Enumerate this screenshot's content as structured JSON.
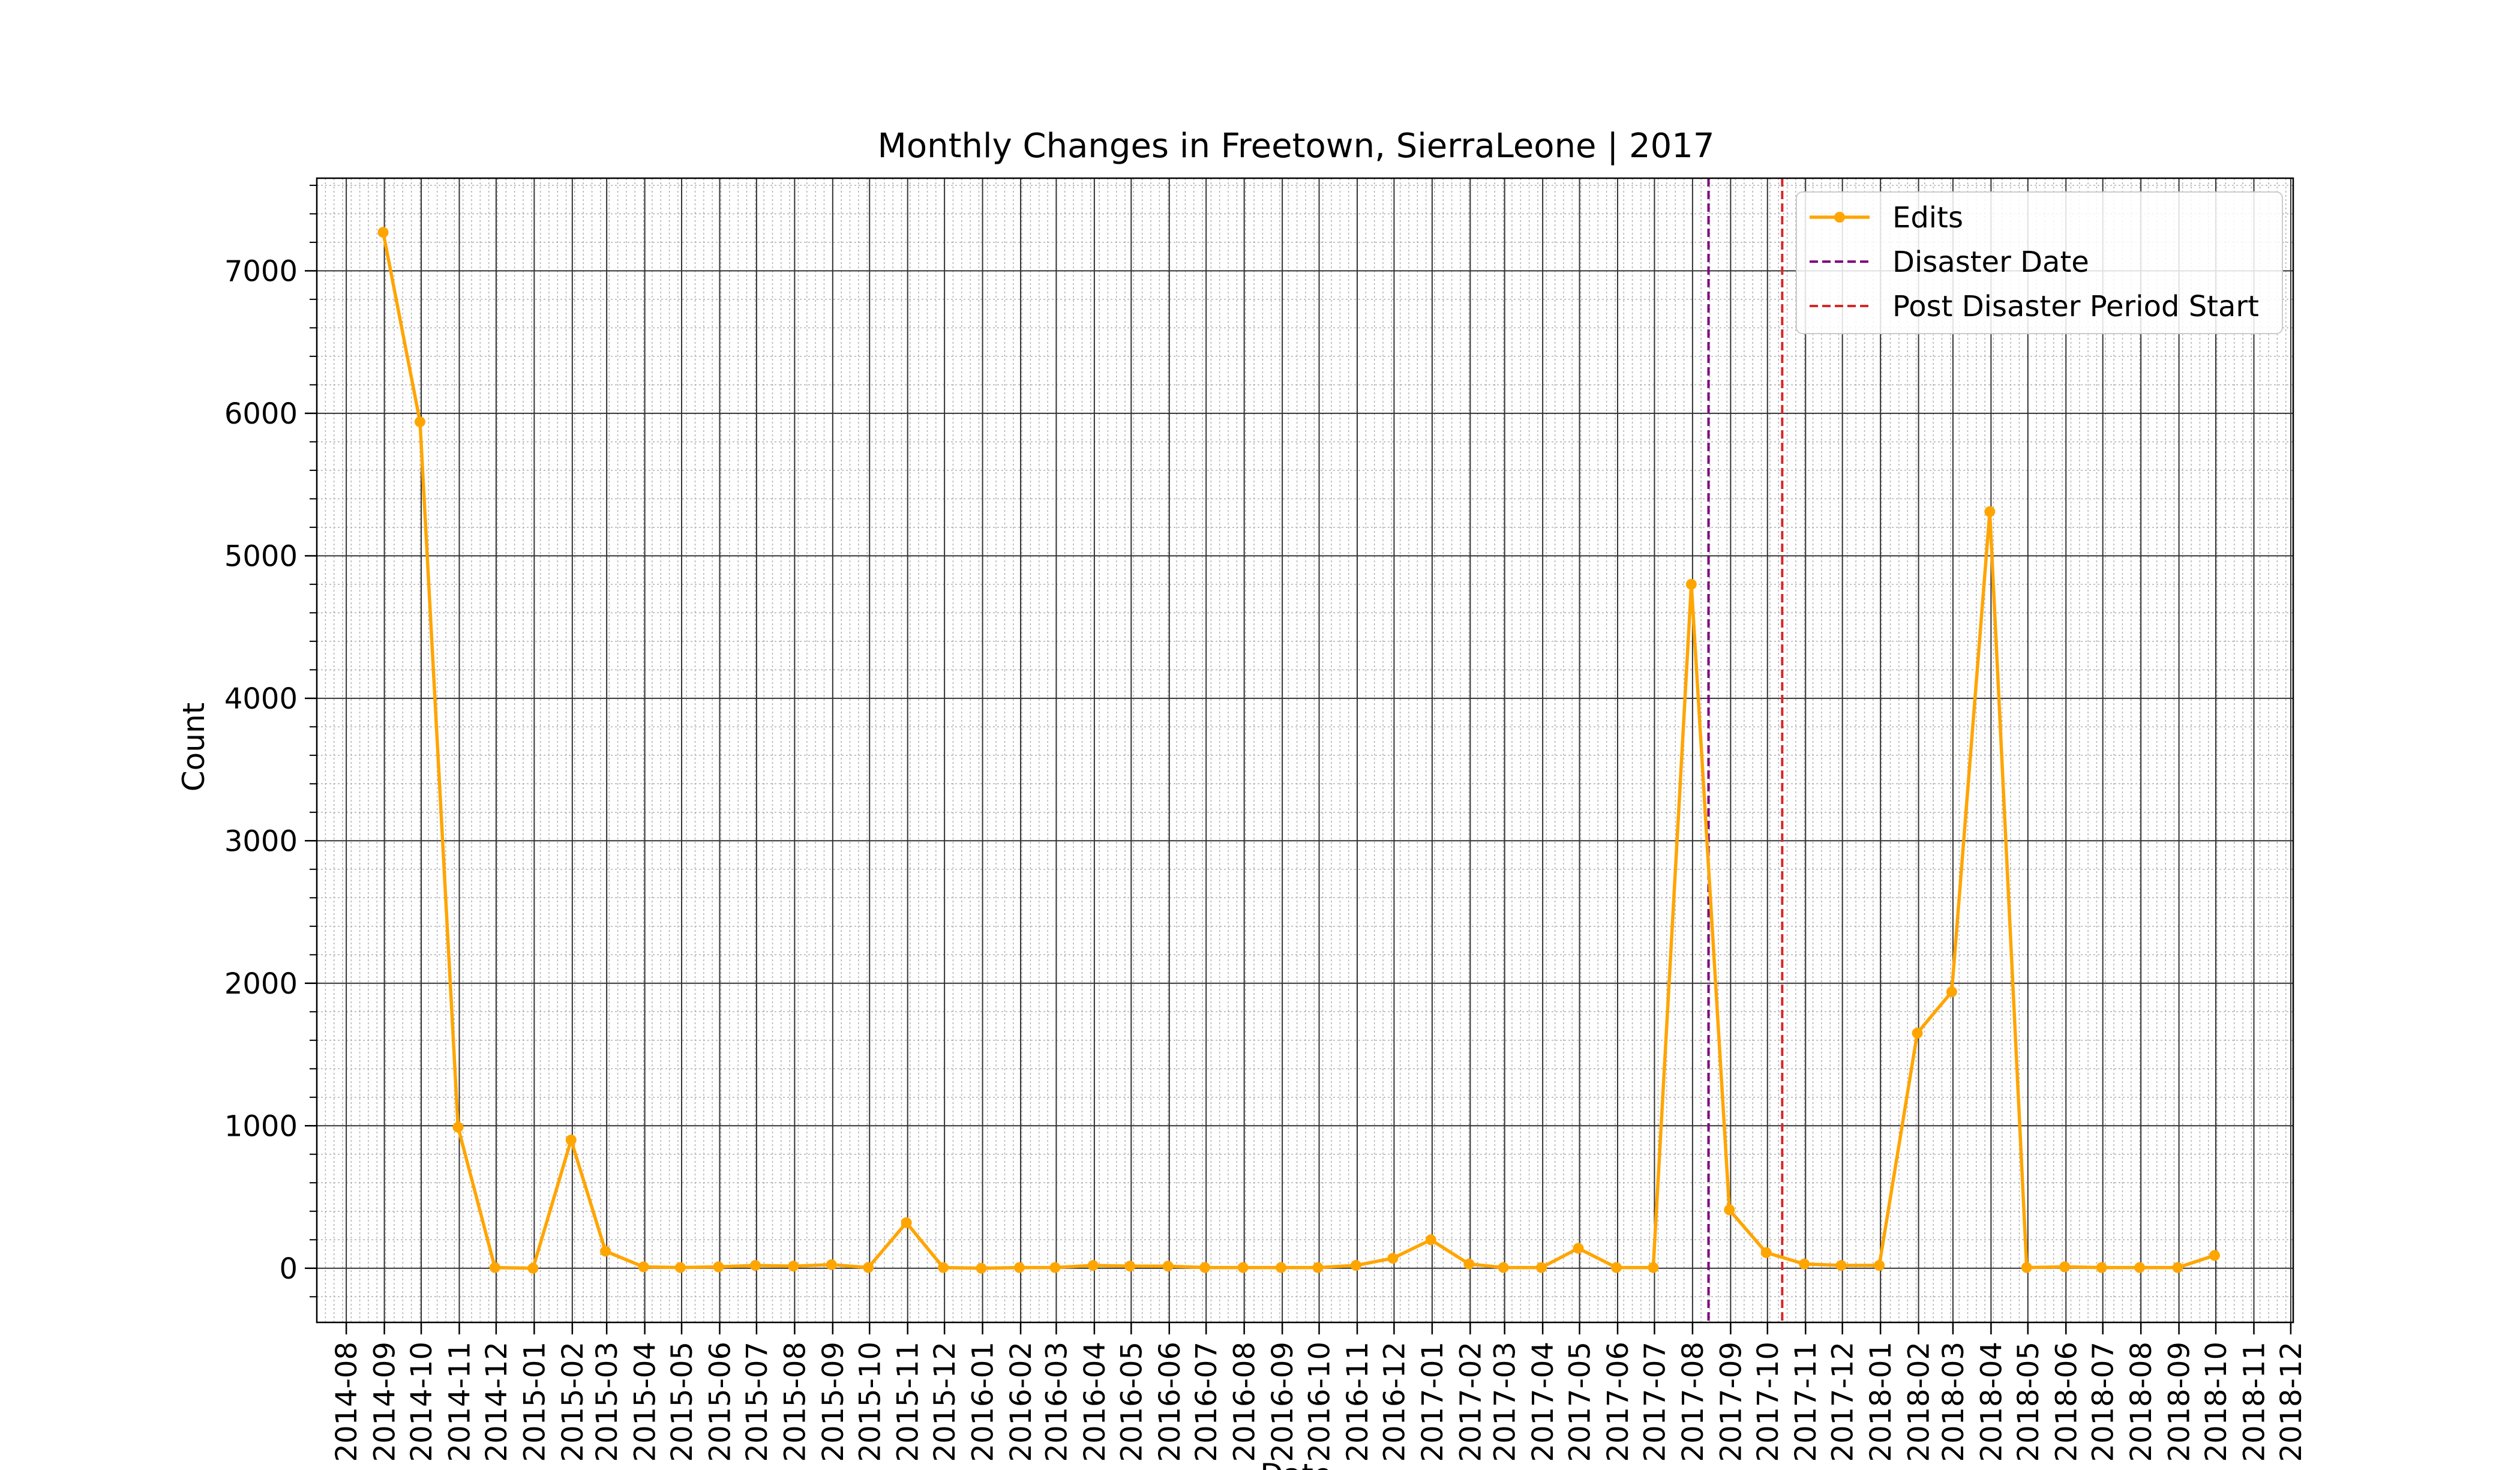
{
  "chart_data": {
    "type": "line",
    "title": "Monthly Changes in Freetown, SierraLeone | 2017",
    "xlabel": "Date",
    "ylabel": "Count",
    "ylim": [
      -380,
      7650
    ],
    "xlim": [
      "2014-07-08",
      "2018-12-03"
    ],
    "yticks": [
      0,
      1000,
      2000,
      3000,
      4000,
      5000,
      6000,
      7000
    ],
    "xticks": [
      "2014-08",
      "2014-09",
      "2014-10",
      "2014-11",
      "2014-12",
      "2015-01",
      "2015-02",
      "2015-03",
      "2015-04",
      "2015-05",
      "2015-06",
      "2015-07",
      "2015-08",
      "2015-09",
      "2015-10",
      "2015-11",
      "2015-12",
      "2016-01",
      "2016-02",
      "2016-03",
      "2016-04",
      "2016-05",
      "2016-06",
      "2016-07",
      "2016-08",
      "2016-09",
      "2016-10",
      "2016-11",
      "2016-12",
      "2017-01",
      "2017-02",
      "2017-03",
      "2017-04",
      "2017-05",
      "2017-06",
      "2017-07",
      "2017-08",
      "2017-09",
      "2017-10",
      "2017-11",
      "2017-12",
      "2018-01",
      "2018-02",
      "2018-03",
      "2018-04",
      "2018-05",
      "2018-06",
      "2018-07",
      "2018-08",
      "2018-09",
      "2018-10",
      "2018-11",
      "2018-12"
    ],
    "grid": true,
    "legend_position": "upper right",
    "series": [
      {
        "name": "Edits",
        "color": "#ffa500",
        "marker": "circle",
        "x": [
          "2014-08-31",
          "2014-09-30",
          "2014-10-31",
          "2014-11-30",
          "2014-12-31",
          "2015-01-31",
          "2015-02-28",
          "2015-03-31",
          "2015-04-30",
          "2015-05-31",
          "2015-06-30",
          "2015-07-31",
          "2015-08-31",
          "2015-09-30",
          "2015-10-31",
          "2015-11-30",
          "2015-12-31",
          "2016-01-31",
          "2016-02-29",
          "2016-03-31",
          "2016-04-30",
          "2016-05-31",
          "2016-06-30",
          "2016-07-31",
          "2016-08-31",
          "2016-09-30",
          "2016-10-31",
          "2016-11-30",
          "2016-12-31",
          "2017-01-31",
          "2017-02-28",
          "2017-03-31",
          "2017-04-30",
          "2017-05-31",
          "2017-06-30",
          "2017-07-31",
          "2017-08-31",
          "2017-09-30",
          "2017-10-31",
          "2017-11-30",
          "2017-12-31",
          "2018-01-31",
          "2018-02-28",
          "2018-03-31",
          "2018-04-30",
          "2018-05-31",
          "2018-06-30",
          "2018-07-31",
          "2018-08-31",
          "2018-09-30"
        ],
        "values": [
          7270,
          5940,
          990,
          5,
          0,
          900,
          120,
          10,
          5,
          10,
          20,
          15,
          25,
          5,
          320,
          5,
          0,
          5,
          5,
          20,
          15,
          15,
          5,
          5,
          5,
          5,
          20,
          70,
          200,
          30,
          5,
          5,
          140,
          5,
          5,
          4800,
          410,
          110,
          30,
          20,
          20,
          1650,
          1940,
          5310,
          5,
          10,
          5,
          5,
          5,
          90
        ]
      }
    ],
    "vlines": [
      {
        "name": "Disaster Date",
        "x": "2017-08-14",
        "color": "#800080",
        "style": "dashed"
      },
      {
        "name": "Post Disaster Period Start",
        "x": "2017-10-13",
        "color": "#d62728",
        "style": "dashed"
      }
    ]
  }
}
